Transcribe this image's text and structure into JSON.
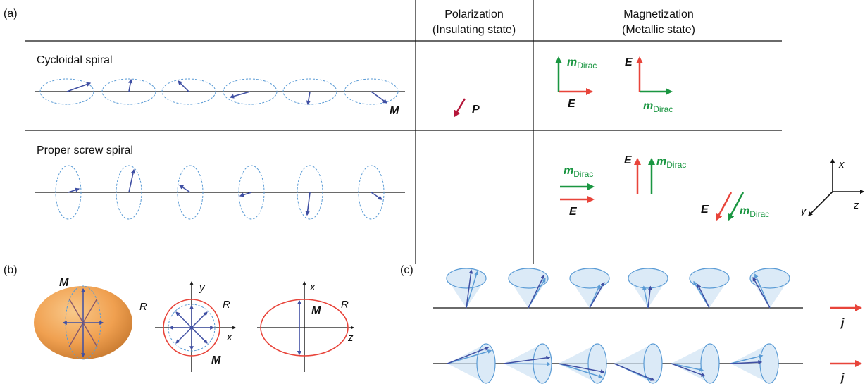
{
  "panel_a": {
    "label": "(a)",
    "columns": [
      {
        "title": "Polarization",
        "subtitle": "(Insulating state)"
      },
      {
        "title": "Magnetization",
        "subtitle": "(Metallic state)"
      }
    ],
    "rows": [
      {
        "name": "Cycloidal spiral",
        "spin_label": "M",
        "polarization_label": "P"
      },
      {
        "name": "Proper screw spiral"
      }
    ],
    "field_label": "E",
    "moment_label": "m",
    "moment_subscript": "Dirac",
    "axes": {
      "x": "x",
      "y": "y",
      "z": "z"
    }
  },
  "panel_b": {
    "label": "(b)",
    "radius_label": "R",
    "moment_label": "M",
    "axis_1": [
      "y",
      "x"
    ],
    "axis_2": [
      "x",
      "z"
    ]
  },
  "panel_c": {
    "label": "(c)",
    "current_label": "j"
  }
}
